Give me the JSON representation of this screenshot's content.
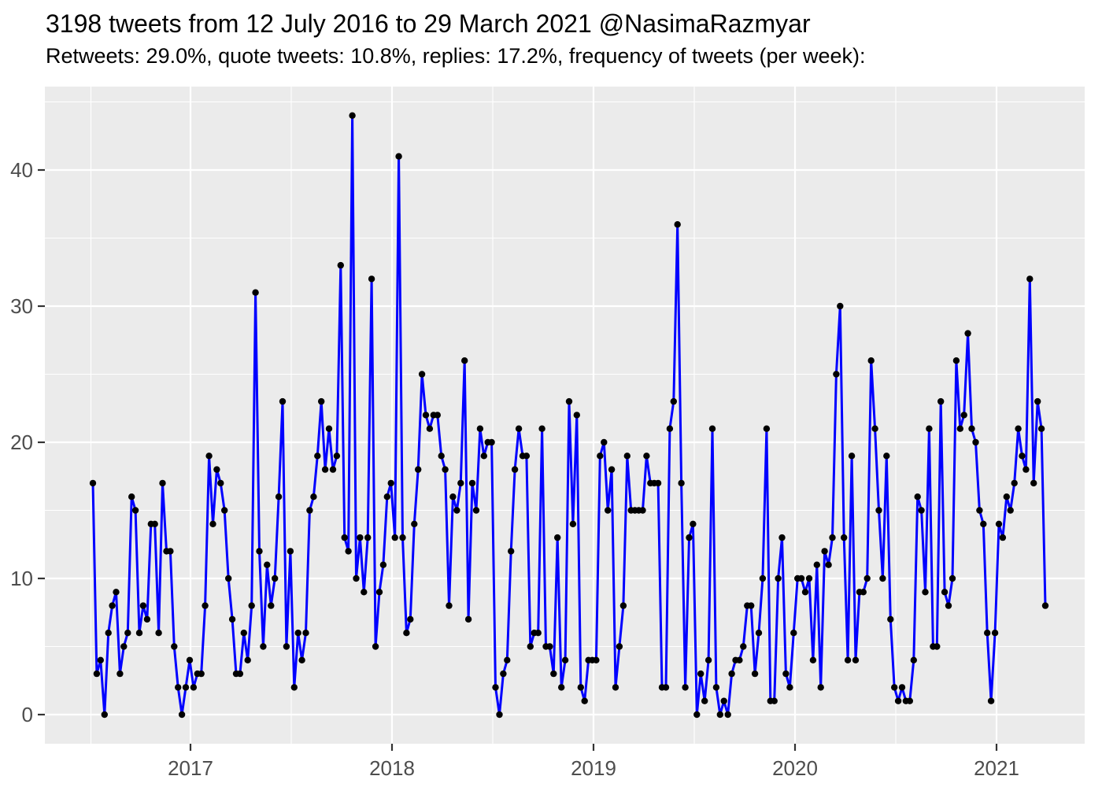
{
  "header": {
    "title": "3198 tweets from 12 July 2016 to 29 March 2021 @NasimaRazmyar",
    "subtitle": "Retweets: 29.0%, quote tweets: 10.8%, replies: 17.2%, frequency of tweets (per week):"
  },
  "chart_data": {
    "type": "line",
    "title": "3198 tweets from 12 July 2016 to 29 March 2021 @NasimaRazmyar",
    "subtitle": "Retweets: 29.0%, quote tweets: 10.8%, replies: 17.2%, frequency of tweets (per week):",
    "xlabel": "",
    "ylabel": "",
    "x_start_date": "2016-07-12",
    "x_end_date": "2021-03-29",
    "x_interval": "weekly",
    "x_ticks": [
      "2017",
      "2018",
      "2019",
      "2020",
      "2021"
    ],
    "y_ticks": [
      0,
      10,
      20,
      30,
      40
    ],
    "y_minor_ticks": [
      5,
      15,
      25,
      35,
      45
    ],
    "ylim": [
      -2.2,
      46.2
    ],
    "grid": true,
    "legend": false,
    "panel_background": "#EBEBEB",
    "grid_color": "#FFFFFF",
    "tick_label_color": "#4D4D4D",
    "tick_mark_color": "#333333",
    "series": [
      {
        "name": "tweets per week",
        "color": "#0000FF",
        "point_color": "#000000",
        "values": [
          17,
          3,
          4,
          0,
          6,
          8,
          9,
          3,
          5,
          6,
          16,
          15,
          6,
          8,
          7,
          14,
          14,
          6,
          17,
          12,
          12,
          5,
          2,
          0,
          2,
          4,
          2,
          3,
          3,
          8,
          19,
          14,
          18,
          17,
          15,
          10,
          7,
          3,
          3,
          6,
          4,
          8,
          31,
          12,
          5,
          11,
          8,
          10,
          16,
          23,
          5,
          12,
          2,
          6,
          4,
          6,
          15,
          16,
          19,
          23,
          18,
          21,
          18,
          19,
          33,
          13,
          12,
          44,
          10,
          13,
          9,
          13,
          32,
          5,
          9,
          11,
          16,
          17,
          13,
          41,
          13,
          6,
          7,
          14,
          18,
          25,
          22,
          21,
          22,
          22,
          19,
          18,
          8,
          16,
          15,
          17,
          26,
          7,
          17,
          15,
          21,
          19,
          20,
          20,
          2,
          0,
          3,
          4,
          12,
          18,
          21,
          19,
          19,
          5,
          6,
          6,
          21,
          5,
          5,
          3,
          13,
          2,
          4,
          23,
          14,
          22,
          2,
          1,
          4,
          4,
          4,
          19,
          20,
          15,
          18,
          2,
          5,
          8,
          19,
          15,
          15,
          15,
          15,
          19,
          17,
          17,
          17,
          2,
          2,
          21,
          23,
          36,
          17,
          2,
          13,
          14,
          0,
          3,
          1,
          4,
          21,
          2,
          0,
          1,
          0,
          3,
          4,
          4,
          5,
          8,
          8,
          3,
          6,
          10,
          21,
          1,
          1,
          10,
          13,
          3,
          2,
          6,
          10,
          10,
          9,
          10,
          4,
          11,
          2,
          12,
          11,
          13,
          25,
          30,
          13,
          4,
          19,
          4,
          9,
          9,
          10,
          26,
          21,
          15,
          10,
          19,
          7,
          2,
          1,
          2,
          1,
          1,
          4,
          16,
          15,
          9,
          21,
          5,
          5,
          23,
          9,
          8,
          10,
          26,
          21,
          22,
          28,
          21,
          20,
          15,
          14,
          6,
          1,
          6,
          14,
          13,
          16,
          15,
          17,
          21,
          19,
          18,
          32,
          17,
          23,
          21,
          8
        ]
      }
    ]
  }
}
